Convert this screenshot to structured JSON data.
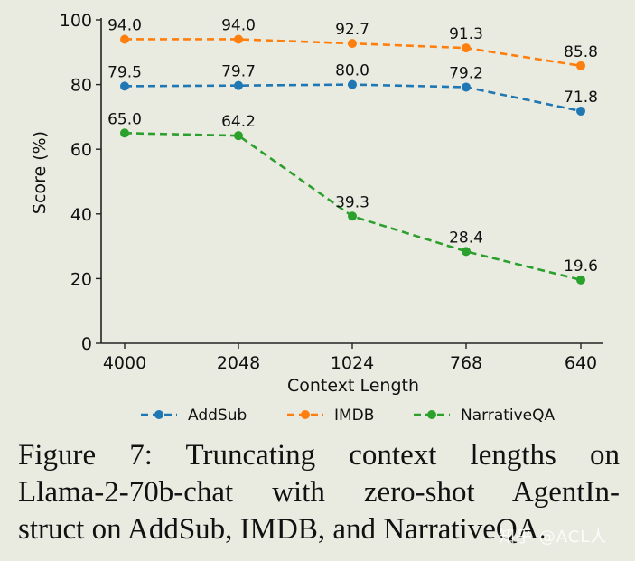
{
  "chart_data": {
    "type": "line",
    "categories": [
      "4000",
      "2048",
      "1024",
      "768",
      "640"
    ],
    "xlabel": "Context Length",
    "ylabel": "Score (%)",
    "ylim": [
      0,
      100
    ],
    "yticks": [
      0,
      20,
      40,
      60,
      80,
      100
    ],
    "grid": false,
    "legend_position": "bottom",
    "series": [
      {
        "name": "AddSub",
        "color": "#1f77b4",
        "values": [
          79.5,
          79.7,
          80.0,
          79.2,
          71.8
        ],
        "labels": [
          "79.5",
          "79.7",
          "80.0",
          "79.2",
          "71.8"
        ]
      },
      {
        "name": "IMDB",
        "color": "#ff7f0e",
        "values": [
          94.0,
          94.0,
          92.7,
          91.3,
          85.8
        ],
        "labels": [
          "94.0",
          "94.0",
          "92.7",
          "91.3",
          "85.8"
        ]
      },
      {
        "name": "NarrativeQA",
        "color": "#2ca02c",
        "values": [
          65.0,
          64.2,
          39.3,
          28.4,
          19.6
        ],
        "labels": [
          "65.0",
          "64.2",
          "39.3",
          "28.4",
          "19.6"
        ]
      }
    ]
  },
  "caption": {
    "lines": [
      "Figure 7:  Truncating context lengths on",
      "Llama-2-70b-chat with zero-shot AgentIn-",
      "struct on AddSub, IMDB, and NarrativeQA."
    ]
  },
  "watermark": "知乎 @ACL人"
}
